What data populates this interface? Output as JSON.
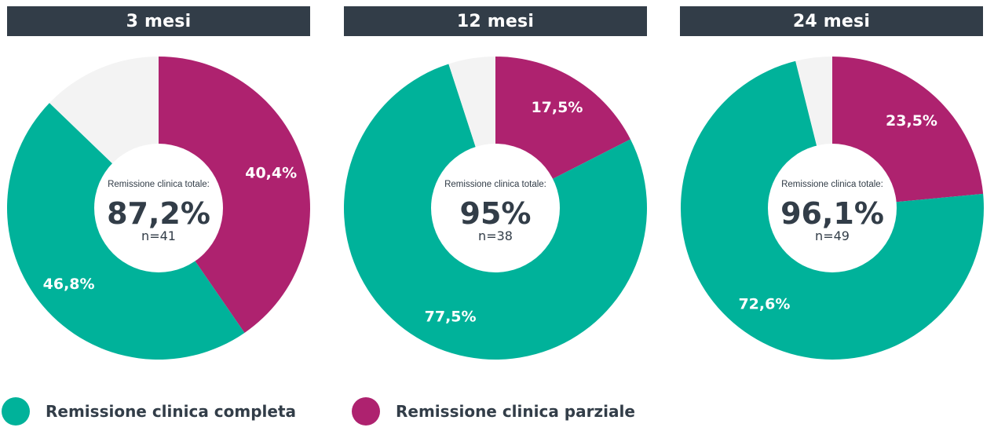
{
  "chart_data": [
    {
      "type": "pie",
      "title": "3 mesi",
      "center_caption": "Remissione clinica totale:",
      "center_value": "87,2%",
      "center_n": "n=41",
      "slices": [
        {
          "series": "Remissione clinica parziale",
          "value": 40.4,
          "label": "40,4%"
        },
        {
          "series": "Remissione clinica completa",
          "value": 46.8,
          "label": "46,8%"
        },
        {
          "series": "",
          "value": 12.8,
          "label": ""
        }
      ]
    },
    {
      "type": "pie",
      "title": "12 mesi",
      "center_caption": "Remissione clinica totale:",
      "center_value": "95%",
      "center_n": "n=38",
      "slices": [
        {
          "series": "Remissione clinica parziale",
          "value": 17.5,
          "label": "17,5%"
        },
        {
          "series": "Remissione clinica completa",
          "value": 77.5,
          "label": "77,5%"
        },
        {
          "series": "",
          "value": 5.0,
          "label": ""
        }
      ]
    },
    {
      "type": "pie",
      "title": "24 mesi",
      "center_caption": "Remissione clinica totale:",
      "center_value": "96,1%",
      "center_n": "n=49",
      "slices": [
        {
          "series": "Remissione clinica parziale",
          "value": 23.5,
          "label": "23,5%"
        },
        {
          "series": "Remissione clinica completa",
          "value": 72.6,
          "label": "72,6%"
        },
        {
          "series": "",
          "value": 3.9,
          "label": ""
        }
      ]
    }
  ],
  "legend": [
    {
      "label": "Remissione clinica completa",
      "color": "#00b29a"
    },
    {
      "label": "Remissione clinica parziale",
      "color": "#ae226f"
    }
  ],
  "colors": {
    "Remissione clinica completa": "#00b29a",
    "Remissione clinica parziale": "#ae226f",
    "remainder": "#f3f3f3",
    "header_bg": "#323d48",
    "text_dark": "#323d48"
  }
}
